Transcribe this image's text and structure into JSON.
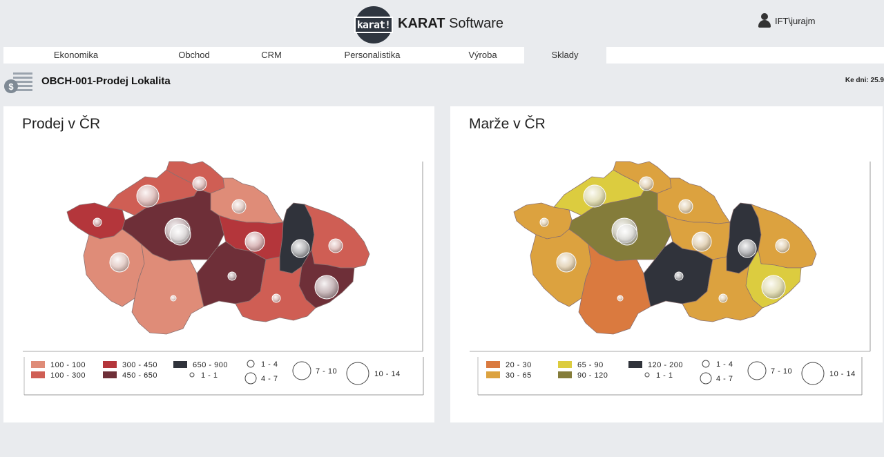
{
  "header": {
    "logo_text": "karat!",
    "brand_bold": "KARAT",
    "brand_rest": " Software",
    "user": "IFT\\jurajm"
  },
  "nav": {
    "items": [
      {
        "label": "Ekonomika"
      },
      {
        "label": "Obchod"
      },
      {
        "label": "CRM"
      },
      {
        "label": "Personalistika"
      },
      {
        "label": "Výroba"
      },
      {
        "label": "Sklady",
        "active": true
      }
    ]
  },
  "report": {
    "title": "OBCH-001-Prodej Lokalita",
    "date_label": "Ke dni: 25.9"
  },
  "maps": [
    {
      "title": "Prodej v ČR",
      "colors": [
        "#df8c78",
        "#cf5e54",
        "#b4363b",
        "#6e2f38",
        "#30333b"
      ],
      "legend_colors": [
        {
          "label": "100 - 100",
          "color": "#df8c78"
        },
        {
          "label": "100 - 300",
          "color": "#cf5e54"
        },
        {
          "label": "300 - 450",
          "color": "#b4363b"
        },
        {
          "label": "450 - 650",
          "color": "#6e2f38"
        },
        {
          "label": "650 - 900",
          "color": "#30333b"
        }
      ],
      "legend_sizes": [
        {
          "label": "1 - 4"
        },
        {
          "label": "4 - 7"
        },
        {
          "label": "7 - 10"
        },
        {
          "label": "10 - 14"
        },
        {
          "label": "1 - 1"
        }
      ]
    },
    {
      "title": "Marže v ČR",
      "colors": [
        "#da7a3f",
        "#dca23f",
        "#dccc3f",
        "#847c3a",
        "#30333b"
      ],
      "legend_colors": [
        {
          "label": "20 - 30",
          "color": "#da7a3f"
        },
        {
          "label": "30 - 65",
          "color": "#dca23f"
        },
        {
          "label": "65 - 90",
          "color": "#dccc3f"
        },
        {
          "label": "90 - 120",
          "color": "#847c3a"
        },
        {
          "label": "120 - 200",
          "color": "#30333b"
        }
      ],
      "legend_sizes": [
        {
          "label": "1 - 4"
        },
        {
          "label": "4 - 7"
        },
        {
          "label": "7 - 10"
        },
        {
          "label": "10 - 14"
        },
        {
          "label": "1 - 1"
        }
      ]
    }
  ]
}
